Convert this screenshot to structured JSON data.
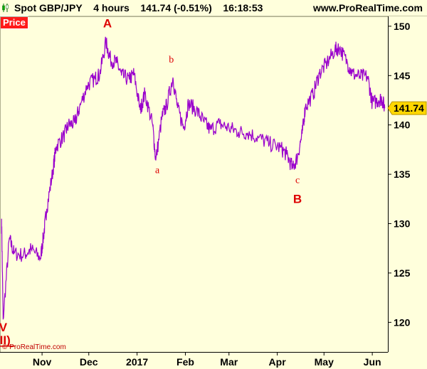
{
  "header": {
    "symbol": "Spot GBP/JPY",
    "timeframe": "4 hours",
    "last_change": "141.74 (-0.51%)",
    "time": "16:18:53",
    "site": "www.ProRealTime.com"
  },
  "panel_label": "Price",
  "copyright": "© ProRealTime.com",
  "colors": {
    "line": "#9900cc",
    "wave": "#dd0000",
    "background": "#ffffdc",
    "axis": "#000000"
  },
  "chart_data": {
    "type": "line",
    "series": [
      {
        "x": [
          "2016-10-06",
          "2016-10-07",
          "2016-10-11",
          "2016-10-14",
          "2016-10-20",
          "2016-10-25",
          "2016-10-31",
          "2016-11-02",
          "2016-11-04",
          "2016-11-08",
          "2016-11-10",
          "2016-11-15",
          "2016-11-18",
          "2016-11-22",
          "2016-11-25",
          "2016-11-30",
          "2016-12-05",
          "2016-12-08",
          "2016-12-12",
          "2016-12-15",
          "2016-12-19",
          "2016-12-22",
          "2016-12-27",
          "2016-12-30",
          "2017-01-03",
          "2017-01-06",
          "2017-01-11",
          "2017-01-13",
          "2017-01-17",
          "2017-01-20",
          "2017-01-24",
          "2017-01-27",
          "2017-01-31",
          "2017-02-03",
          "2017-02-08",
          "2017-02-13",
          "2017-02-17",
          "2017-02-23",
          "2017-03-01",
          "2017-03-07",
          "2017-03-13",
          "2017-03-20",
          "2017-03-27",
          "2017-04-03",
          "2017-04-07",
          "2017-04-11",
          "2017-04-14",
          "2017-04-17",
          "2017-04-19",
          "2017-04-24",
          "2017-04-28",
          "2017-05-03",
          "2017-05-08",
          "2017-05-11",
          "2017-05-16",
          "2017-05-19",
          "2017-05-24",
          "2017-05-29",
          "2017-06-01",
          "2017-06-05",
          "2017-06-07",
          "2017-06-09"
        ],
        "y": [
          130.5,
          120.3,
          128.5,
          127.0,
          126.8,
          127.4,
          126.5,
          128.8,
          131.5,
          135.4,
          137.8,
          138.9,
          140.0,
          140.2,
          141.7,
          144.0,
          144.7,
          145.1,
          148.4,
          146.6,
          146.3,
          145.0,
          144.6,
          145.2,
          141.5,
          143.2,
          140.0,
          136.4,
          140.8,
          142.0,
          144.8,
          141.7,
          139.7,
          142.2,
          141.5,
          140.3,
          139.5,
          140.1,
          139.7,
          139.3,
          139.2,
          138.7,
          138.1,
          137.7,
          137.0,
          135.6,
          136.8,
          139.1,
          141.8,
          143.1,
          145.2,
          146.3,
          147.6,
          147.8,
          146.3,
          145.2,
          144.9,
          144.9,
          142.2,
          142.5,
          142.7,
          141.7
        ]
      }
    ],
    "ylim": [
      117,
      151
    ],
    "y_ticks": [
      120,
      125,
      130,
      135,
      140,
      145,
      150
    ],
    "x_tick_labels": [
      {
        "label": "Nov",
        "date": "2016-11-01"
      },
      {
        "label": "Dec",
        "date": "2016-12-01"
      },
      {
        "label": "2017",
        "date": "2017-01-01"
      },
      {
        "label": "Feb",
        "date": "2017-02-01"
      },
      {
        "label": "Mar",
        "date": "2017-03-01"
      },
      {
        "label": "Apr",
        "date": "2017-04-01"
      },
      {
        "label": "May",
        "date": "2017-05-01"
      },
      {
        "label": "Jun",
        "date": "2017-06-01"
      }
    ],
    "last_price_tag": "141.74",
    "grid": false,
    "annotations": [
      {
        "text": "A",
        "date": "2016-12-13",
        "value": 149.9,
        "size": "large"
      },
      {
        "text": "b",
        "date": "2017-01-23",
        "value": 146.3,
        "size": "small"
      },
      {
        "text": "a",
        "date": "2017-01-14",
        "value": 135.1,
        "size": "small"
      },
      {
        "text": "c",
        "date": "2017-04-14",
        "value": 134.1,
        "size": "small"
      },
      {
        "text": "B",
        "date": "2017-04-14",
        "value": 132.1,
        "size": "large"
      },
      {
        "text": "V",
        "date": "2016-10-07",
        "value": 119.1,
        "size": "large"
      },
      {
        "text": "(II)",
        "date": "2016-10-07",
        "value": 117.8,
        "size": "large",
        "underline": true
      }
    ]
  }
}
